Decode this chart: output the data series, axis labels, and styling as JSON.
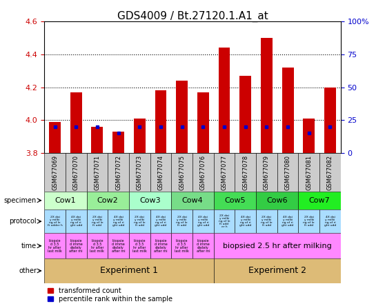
{
  "title": "GDS4009 / Bt.27120.1.A1_at",
  "samples": [
    "GSM677069",
    "GSM677070",
    "GSM677071",
    "GSM677072",
    "GSM677073",
    "GSM677074",
    "GSM677075",
    "GSM677076",
    "GSM677077",
    "GSM677078",
    "GSM677079",
    "GSM677080",
    "GSM677081",
    "GSM677082"
  ],
  "transformed_counts": [
    3.99,
    4.17,
    3.96,
    3.93,
    4.01,
    4.18,
    4.24,
    4.17,
    4.44,
    4.27,
    4.5,
    4.32,
    4.01,
    4.2
  ],
  "percentile_ranks": [
    20,
    20,
    20,
    15,
    20,
    20,
    20,
    20,
    20,
    20,
    20,
    20,
    15,
    20
  ],
  "bar_bottom": 3.8,
  "ylim_left": [
    3.8,
    4.6
  ],
  "ylim_right": [
    0,
    100
  ],
  "yticks_left": [
    3.8,
    4.0,
    4.2,
    4.4,
    4.6
  ],
  "yticks_right": [
    0,
    25,
    50,
    75,
    100
  ],
  "bar_color": "#cc0000",
  "blue_color": "#0000cc",
  "specimen_groups": [
    {
      "label": "Cow1",
      "start": 0,
      "end": 2,
      "color": "#ccffcc"
    },
    {
      "label": "Cow2",
      "start": 2,
      "end": 4,
      "color": "#99dd99"
    },
    {
      "label": "Cow3",
      "start": 4,
      "end": 6,
      "color": "#ccffcc"
    },
    {
      "label": "Cow4",
      "start": 6,
      "end": 8,
      "color": "#99dd99"
    },
    {
      "label": "Cow5",
      "start": 8,
      "end": 10,
      "color": "#55dd55"
    },
    {
      "label": "Cow6",
      "start": 10,
      "end": 12,
      "color": "#44cc44"
    },
    {
      "label": "Cow7",
      "start": 12,
      "end": 14,
      "color": "#22ee22"
    }
  ],
  "protocol_color": "#aaddff",
  "time_groups": [
    {
      "label": "biopsie\nd 3.5\nhr after\nlast milk",
      "start": 0,
      "end": 1
    },
    {
      "label": "biopsie\nd imme\ndiately\nafter mi",
      "start": 1,
      "end": 2
    },
    {
      "label": "biopsie\nd 3.5\nhr after\nlast milk",
      "start": 2,
      "end": 3
    },
    {
      "label": "biopsie\nd imme\ndiately\nafter mi",
      "start": 3,
      "end": 4
    },
    {
      "label": "biopsie\nd 3.5\nhr after\nlast milk",
      "start": 4,
      "end": 5
    },
    {
      "label": "biopsie\nd imme\ndiately\nafter mi",
      "start": 5,
      "end": 6
    },
    {
      "label": "biopsie\nd 3.5\nhr after\nlast milk",
      "start": 6,
      "end": 7
    },
    {
      "label": "biopsie\nd imme\ndiately\nafter mi",
      "start": 7,
      "end": 8
    },
    {
      "label": "biopsied 2.5 hr after milking",
      "start": 8,
      "end": 14
    }
  ],
  "time_color": "#ff88ff",
  "other_groups": [
    {
      "label": "Experiment 1",
      "start": 0,
      "end": 8
    },
    {
      "label": "Experiment 2",
      "start": 8,
      "end": 14
    }
  ],
  "other_color": "#ddbb77",
  "row_labels": [
    "specimen",
    "protocol",
    "time",
    "other"
  ],
  "protocol_texts": [
    "2X dai\ny milki\nng of le\nft udder h",
    "4X dai\ny milki\nng of ri\nght udd",
    "2X dai\ny milki\nng of le\nft udd",
    "4X dai\ny milki\nng of ri\nght udd",
    "2X dai\ny milki\nng of le\nft udd",
    "4X dai\ny milki\nng of ri\nght udd",
    "2X dai\ny milki\nng of le\nft udd",
    "4X dai\ny milki\nng of ri\nght udd",
    "2X dai\ny milki\nng of le\nft udd\ner h",
    "4X dai\ny milki\nng of ri\nght udd",
    "2X dai\ny milki\nng of le\nft udd",
    "4X dai\ny milki\nng of ri\nght udd",
    "2X dai\ny milki\nng of le\nft udd",
    "4X dai\ny milki\nng of ri\nght udd"
  ],
  "tick_color_left": "#cc0000",
  "tick_color_right": "#0000cc",
  "sample_box_color": "#cccccc"
}
